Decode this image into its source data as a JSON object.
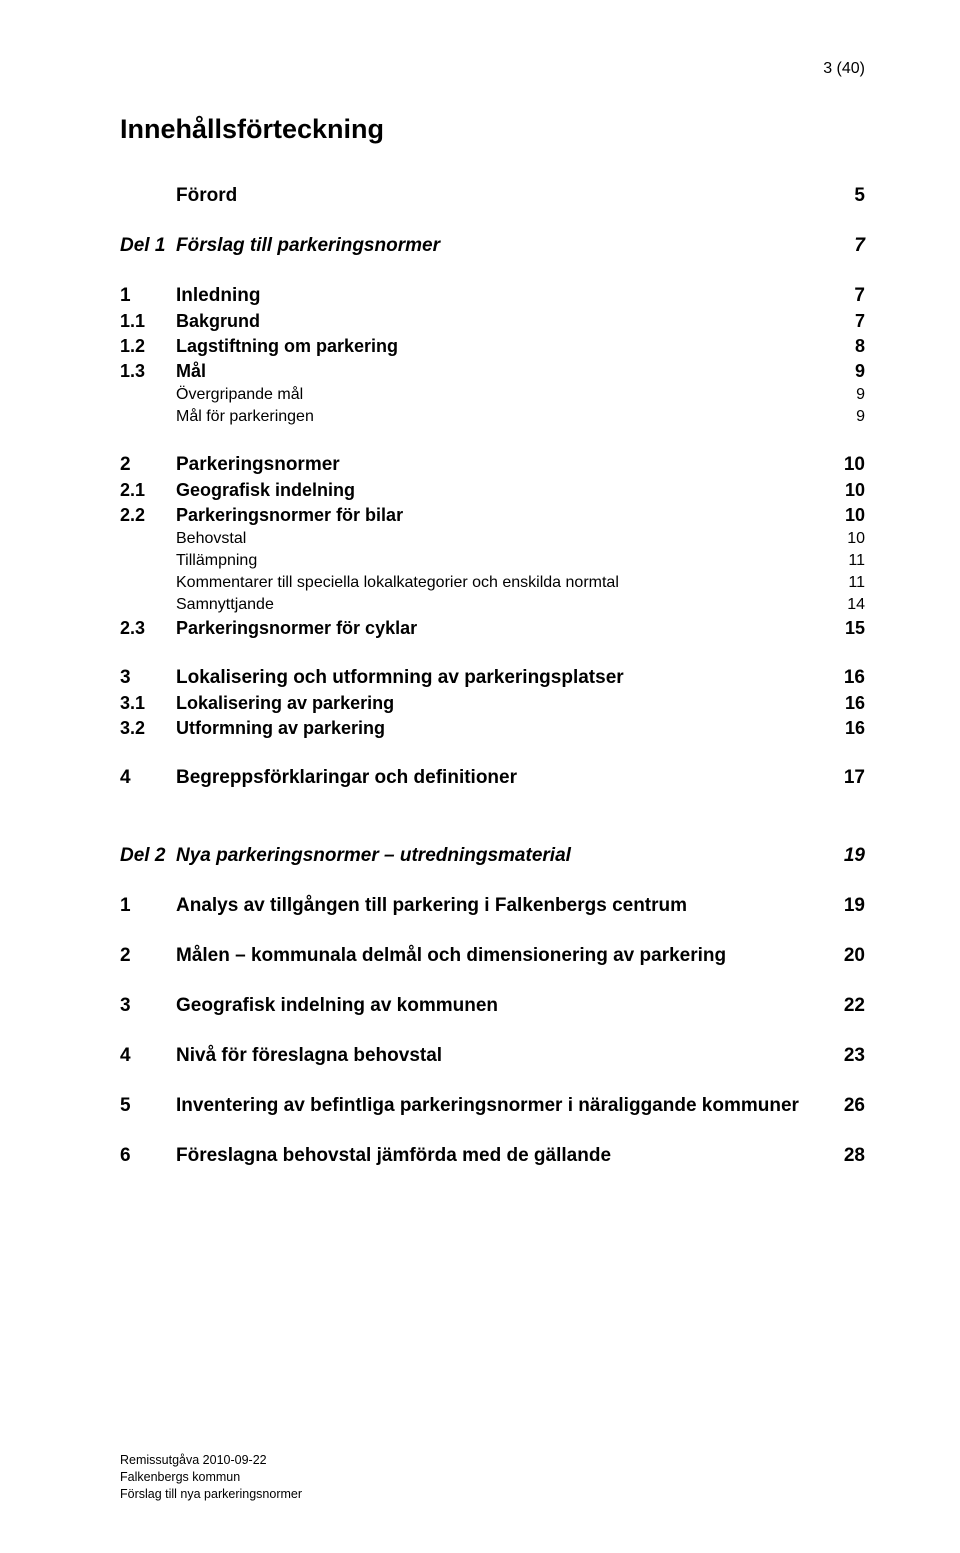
{
  "page_number": "3 (40)",
  "title": "Innehållsförteckning",
  "entries": [
    {
      "num": "",
      "label": "Förord",
      "page": "5",
      "bold": true,
      "italic": false,
      "size": "fs19",
      "gap": "gap-lg",
      "indent": false
    },
    {
      "num": "Del 1",
      "label": "Förslag till parkeringsnormer",
      "page": "7",
      "bold": true,
      "italic": true,
      "size": "fs19",
      "gap": "gap-lg",
      "indent": false
    },
    {
      "num": "1",
      "label": "Inledning",
      "page": "7",
      "bold": true,
      "italic": false,
      "size": "fs19",
      "gap": "gap-lg",
      "indent": false
    },
    {
      "num": "1.1",
      "label": "Bakgrund",
      "page": "7",
      "bold": true,
      "italic": false,
      "size": "fs18",
      "gap": "gap-sm",
      "indent": false
    },
    {
      "num": "1.2",
      "label": "Lagstiftning om parkering",
      "page": "8",
      "bold": true,
      "italic": false,
      "size": "fs18",
      "gap": "gap-sm",
      "indent": false
    },
    {
      "num": "1.3",
      "label": "Mål",
      "page": "9",
      "bold": true,
      "italic": false,
      "size": "fs18",
      "gap": "gap-sm",
      "indent": false
    },
    {
      "num": "",
      "label": "Övergripande mål",
      "page": "9",
      "bold": false,
      "italic": false,
      "size": "fs16",
      "gap": "gap-sm",
      "indent": true
    },
    {
      "num": "",
      "label": "Mål för parkeringen",
      "page": "9",
      "bold": false,
      "italic": false,
      "size": "fs16",
      "gap": "gap-sm",
      "indent": true
    },
    {
      "num": "2",
      "label": "Parkeringsnormer",
      "page": "10",
      "bold": true,
      "italic": false,
      "size": "fs19",
      "gap": "gap-lg",
      "indent": false
    },
    {
      "num": "2.1",
      "label": "Geografisk indelning",
      "page": "10",
      "bold": true,
      "italic": false,
      "size": "fs18",
      "gap": "gap-sm",
      "indent": false
    },
    {
      "num": "2.2",
      "label": "Parkeringsnormer för bilar",
      "page": "10",
      "bold": true,
      "italic": false,
      "size": "fs18",
      "gap": "gap-sm",
      "indent": false
    },
    {
      "num": "",
      "label": "Behovstal",
      "page": "10",
      "bold": false,
      "italic": false,
      "size": "fs16",
      "gap": "gap-sm",
      "indent": true
    },
    {
      "num": "",
      "label": "Tillämpning",
      "page": "11",
      "bold": false,
      "italic": false,
      "size": "fs16",
      "gap": "gap-sm",
      "indent": true
    },
    {
      "num": "",
      "label": "Kommentarer till speciella lokalkategorier och enskilda normtal",
      "page": "11",
      "bold": false,
      "italic": false,
      "size": "fs16",
      "gap": "gap-sm",
      "indent": true
    },
    {
      "num": "",
      "label": "Samnyttjande",
      "page": "14",
      "bold": false,
      "italic": false,
      "size": "fs16",
      "gap": "gap-sm",
      "indent": true
    },
    {
      "num": "2.3",
      "label": "Parkeringsnormer för cyklar",
      "page": "15",
      "bold": true,
      "italic": false,
      "size": "fs18",
      "gap": "gap-sm",
      "indent": false
    },
    {
      "num": "3",
      "label": "Lokalisering och utformning av parkeringsplatser",
      "page": "16",
      "bold": true,
      "italic": false,
      "size": "fs19",
      "gap": "gap-lg",
      "indent": false
    },
    {
      "num": "3.1",
      "label": "Lokalisering av parkering",
      "page": "16",
      "bold": true,
      "italic": false,
      "size": "fs18",
      "gap": "gap-sm",
      "indent": false
    },
    {
      "num": "3.2",
      "label": "Utformning av parkering",
      "page": "16",
      "bold": true,
      "italic": false,
      "size": "fs18",
      "gap": "gap-sm",
      "indent": false
    },
    {
      "num": "4",
      "label": "Begreppsförklaringar och definitioner",
      "page": "17",
      "bold": true,
      "italic": false,
      "size": "fs19",
      "gap": "gap-lg",
      "indent": false
    },
    {
      "num": "Del 2",
      "label": "Nya parkeringsnormer – utredningsmaterial",
      "page": "19",
      "bold": true,
      "italic": true,
      "size": "fs19",
      "gap": "gap-lg",
      "indent": false,
      "extra_gap": true
    },
    {
      "num": "1",
      "label": "Analys av tillgången till parkering i Falkenbergs centrum",
      "page": "19",
      "bold": true,
      "italic": false,
      "size": "fs19",
      "gap": "gap-lg",
      "indent": false
    },
    {
      "num": "2",
      "label": "Målen – kommunala delmål och dimensionering av parkering",
      "page": "20",
      "bold": true,
      "italic": false,
      "size": "fs19",
      "gap": "gap-lg",
      "indent": false
    },
    {
      "num": "3",
      "label": "Geografisk indelning av kommunen",
      "page": "22",
      "bold": true,
      "italic": false,
      "size": "fs19",
      "gap": "gap-lg",
      "indent": false
    },
    {
      "num": "4",
      "label": "Nivå för föreslagna behovstal",
      "page": "23",
      "bold": true,
      "italic": false,
      "size": "fs19",
      "gap": "gap-lg",
      "indent": false
    },
    {
      "num": "5",
      "label": "Inventering av befintliga parkeringsnormer i näraliggande kommuner",
      "page": "26",
      "bold": true,
      "italic": false,
      "size": "fs19",
      "gap": "gap-lg",
      "indent": false,
      "wrap_label": "kommuner"
    },
    {
      "num": "6",
      "label": "Föreslagna behovstal jämförda med de gällande",
      "page": "28",
      "bold": true,
      "italic": false,
      "size": "fs19",
      "gap": "gap-lg",
      "indent": false
    }
  ],
  "footer": {
    "line1": "Remissutgåva 2010-09-22",
    "line2": "Falkenbergs kommun",
    "line3": "Förslag till nya parkeringsnormer"
  }
}
